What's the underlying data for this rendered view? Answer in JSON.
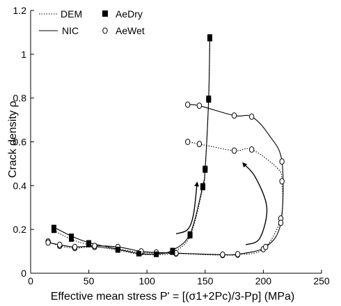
{
  "chart_data": {
    "type": "line",
    "xlabel": "Effective mean stress P' = [(σ1+2Pc)/3-Pp]   (MPa)",
    "ylabel": "Crack density ρ",
    "xlim": [
      0,
      250
    ],
    "ylim": [
      0,
      1.2
    ],
    "x_ticks": [
      0,
      50,
      100,
      150,
      200,
      250
    ],
    "y_ticks": [
      0,
      0.2,
      0.4,
      0.6,
      0.8,
      1.0,
      1.2
    ],
    "y_tick_labels": [
      "0",
      "0.2",
      "0.4",
      "0.6",
      "0.8",
      "1",
      "1.2"
    ],
    "legend": [
      {
        "label": "DEM",
        "kind": "line",
        "style": "dotted"
      },
      {
        "label": "NIC",
        "kind": "line",
        "style": "solid"
      },
      {
        "label": "AeDry",
        "kind": "marker",
        "marker": "filled-square"
      },
      {
        "label": "AeWet",
        "kind": "marker",
        "marker": "open-circle"
      }
    ],
    "series": [
      {
        "kind": "dry-dem",
        "points": [
          [
            20,
            0.195
          ],
          [
            35,
            0.155
          ],
          [
            50,
            0.13
          ],
          [
            75,
            0.105
          ],
          [
            93,
            0.088
          ],
          [
            108,
            0.085
          ],
          [
            122,
            0.095
          ],
          [
            137,
            0.17
          ],
          [
            148,
            0.39
          ],
          [
            150,
            0.47
          ],
          [
            153,
            0.79
          ],
          [
            154,
            1.07
          ]
        ]
      },
      {
        "kind": "dry-nic",
        "points": [
          [
            20,
            0.21
          ],
          [
            35,
            0.17
          ],
          [
            50,
            0.14
          ],
          [
            75,
            0.11
          ],
          [
            93,
            0.09
          ],
          [
            108,
            0.088
          ],
          [
            122,
            0.105
          ],
          [
            137,
            0.18
          ],
          [
            148,
            0.4
          ],
          [
            150,
            0.48
          ],
          [
            153,
            0.8
          ],
          [
            154,
            1.08
          ]
        ]
      },
      {
        "kind": "wet-dem",
        "points": [
          [
            15,
            0.145
          ],
          [
            25,
            0.125
          ],
          [
            38,
            0.115
          ],
          [
            55,
            0.12
          ],
          [
            75,
            0.11
          ],
          [
            95,
            0.095
          ],
          [
            108,
            0.092
          ],
          [
            125,
            0.09
          ],
          [
            150,
            0.085
          ],
          [
            165,
            0.083
          ],
          [
            178,
            0.085
          ],
          [
            200,
            0.11
          ],
          [
            215,
            0.25
          ],
          [
            216,
            0.42
          ],
          [
            212,
            0.48
          ],
          [
            190,
            0.565
          ],
          [
            175,
            0.56
          ],
          [
            145,
            0.59
          ],
          [
            135,
            0.6
          ]
        ]
      },
      {
        "kind": "wet-nic",
        "points": [
          [
            15,
            0.14
          ],
          [
            25,
            0.13
          ],
          [
            38,
            0.12
          ],
          [
            55,
            0.125
          ],
          [
            75,
            0.12
          ],
          [
            95,
            0.1
          ],
          [
            108,
            0.095
          ],
          [
            125,
            0.092
          ],
          [
            150,
            0.087
          ],
          [
            165,
            0.085
          ],
          [
            178,
            0.087
          ],
          [
            202,
            0.12
          ],
          [
            215,
            0.23
          ],
          [
            216,
            0.51
          ],
          [
            205,
            0.63
          ],
          [
            190,
            0.715
          ],
          [
            175,
            0.72
          ],
          [
            145,
            0.765
          ],
          [
            135,
            0.77
          ]
        ]
      }
    ],
    "markers": {
      "dry": [
        [
          20,
          0.195
        ],
        [
          35,
          0.155
        ],
        [
          50,
          0.13
        ],
        [
          75,
          0.105
        ],
        [
          93,
          0.088
        ],
        [
          108,
          0.085
        ],
        [
          122,
          0.095
        ],
        [
          137,
          0.17
        ],
        [
          148,
          0.39
        ],
        [
          150,
          0.47
        ],
        [
          153,
          0.79
        ],
        [
          154,
          1.07
        ],
        [
          20,
          0.21
        ],
        [
          35,
          0.17
        ],
        [
          50,
          0.14
        ],
        [
          75,
          0.11
        ],
        [
          93,
          0.09
        ],
        [
          108,
          0.088
        ],
        [
          122,
          0.105
        ],
        [
          137,
          0.18
        ],
        [
          148,
          0.4
        ],
        [
          150,
          0.48
        ],
        [
          153,
          0.8
        ],
        [
          154,
          1.08
        ]
      ],
      "wet": [
        [
          15,
          0.145
        ],
        [
          25,
          0.125
        ],
        [
          38,
          0.115
        ],
        [
          55,
          0.12
        ],
        [
          75,
          0.11
        ],
        [
          95,
          0.095
        ],
        [
          108,
          0.092
        ],
        [
          125,
          0.09
        ],
        [
          165,
          0.083
        ],
        [
          178,
          0.085
        ],
        [
          200,
          0.11
        ],
        [
          215,
          0.25
        ],
        [
          216,
          0.42
        ],
        [
          190,
          0.565
        ],
        [
          175,
          0.56
        ],
        [
          145,
          0.59
        ],
        [
          135,
          0.6
        ],
        [
          15,
          0.14
        ],
        [
          25,
          0.13
        ],
        [
          38,
          0.12
        ],
        [
          55,
          0.125
        ],
        [
          75,
          0.12
        ],
        [
          95,
          0.1
        ],
        [
          108,
          0.095
        ],
        [
          125,
          0.092
        ],
        [
          165,
          0.085
        ],
        [
          178,
          0.087
        ],
        [
          202,
          0.12
        ],
        [
          215,
          0.23
        ],
        [
          216,
          0.51
        ],
        [
          190,
          0.715
        ],
        [
          175,
          0.72
        ],
        [
          145,
          0.765
        ],
        [
          135,
          0.77
        ]
      ]
    },
    "arrows": [
      {
        "path": [
          [
            125,
            0.18
          ],
          [
            135,
            0.2
          ],
          [
            140,
            0.27
          ],
          [
            143,
            0.41
          ]
        ]
      },
      {
        "path": [
          [
            185,
            0.13
          ],
          [
            197,
            0.16
          ],
          [
            203,
            0.3
          ],
          [
            193,
            0.44
          ],
          [
            183,
            0.5
          ]
        ]
      }
    ],
    "colors": {
      "lines": "#000000",
      "background": "#ffffff"
    },
    "grid": false,
    "legend_position": "top-left"
  }
}
